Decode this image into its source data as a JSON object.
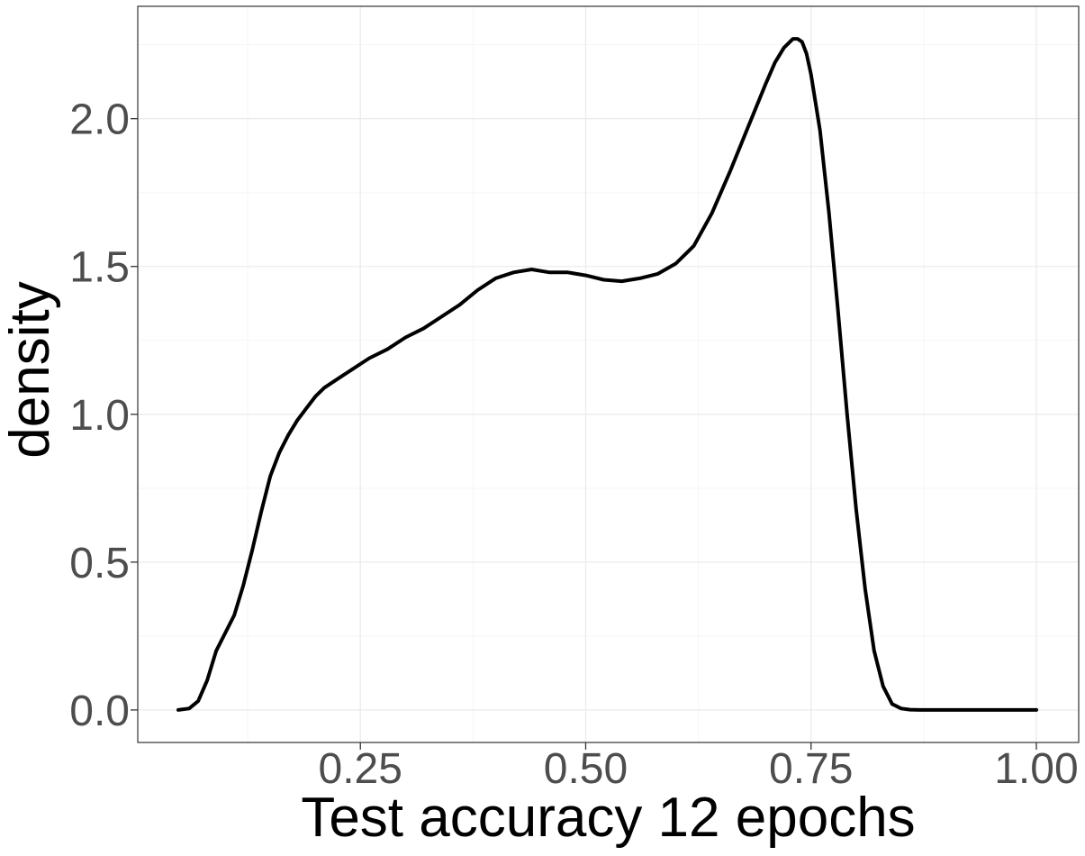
{
  "chart_data": {
    "type": "line",
    "title": "",
    "xlabel": "Test accuracy 12 epochs",
    "ylabel": "density",
    "xlim": [
      0.003,
      1.047
    ],
    "ylim": [
      -0.11,
      2.38
    ],
    "x_ticks": [
      0.25,
      0.5,
      0.75,
      1.0
    ],
    "x_tick_labels": [
      "0.25",
      "0.50",
      "0.75",
      "1.00"
    ],
    "y_ticks": [
      0.0,
      0.5,
      1.0,
      1.5,
      2.0
    ],
    "y_tick_labels": [
      "0.0",
      "0.5",
      "1.0",
      "1.5",
      "2.0"
    ],
    "grid": true,
    "legend": "none",
    "colors": {
      "line": "#000000",
      "grid_major": "#ebebeb",
      "grid_minor": "#f5f5f5",
      "panel_border": "#333333",
      "tick_text": "#4d4d4d"
    },
    "series": [
      {
        "x": [
          0.048,
          0.06,
          0.07,
          0.08,
          0.09,
          0.1,
          0.11,
          0.12,
          0.13,
          0.14,
          0.15,
          0.16,
          0.17,
          0.18,
          0.19,
          0.2,
          0.21,
          0.22,
          0.23,
          0.24,
          0.25,
          0.26,
          0.28,
          0.3,
          0.32,
          0.34,
          0.36,
          0.38,
          0.4,
          0.42,
          0.44,
          0.46,
          0.47,
          0.48,
          0.5,
          0.52,
          0.54,
          0.56,
          0.58,
          0.6,
          0.62,
          0.64,
          0.66,
          0.68,
          0.7,
          0.71,
          0.72,
          0.73,
          0.735,
          0.74,
          0.745,
          0.75,
          0.76,
          0.77,
          0.78,
          0.79,
          0.8,
          0.81,
          0.82,
          0.83,
          0.84,
          0.85,
          0.86,
          0.87,
          0.88,
          0.9,
          0.95,
          1.0
        ],
        "y": [
          0.0,
          0.005,
          0.03,
          0.1,
          0.2,
          0.26,
          0.32,
          0.42,
          0.54,
          0.67,
          0.79,
          0.87,
          0.93,
          0.98,
          1.02,
          1.06,
          1.09,
          1.11,
          1.13,
          1.15,
          1.17,
          1.19,
          1.22,
          1.26,
          1.29,
          1.33,
          1.37,
          1.42,
          1.46,
          1.48,
          1.49,
          1.48,
          1.48,
          1.48,
          1.47,
          1.455,
          1.45,
          1.46,
          1.475,
          1.51,
          1.57,
          1.68,
          1.82,
          1.97,
          2.12,
          2.19,
          2.24,
          2.27,
          2.27,
          2.26,
          2.22,
          2.15,
          1.96,
          1.68,
          1.35,
          1.0,
          0.68,
          0.41,
          0.2,
          0.08,
          0.02,
          0.005,
          0.001,
          0.0,
          0.0,
          0.0,
          0.0,
          0.0
        ]
      }
    ]
  }
}
